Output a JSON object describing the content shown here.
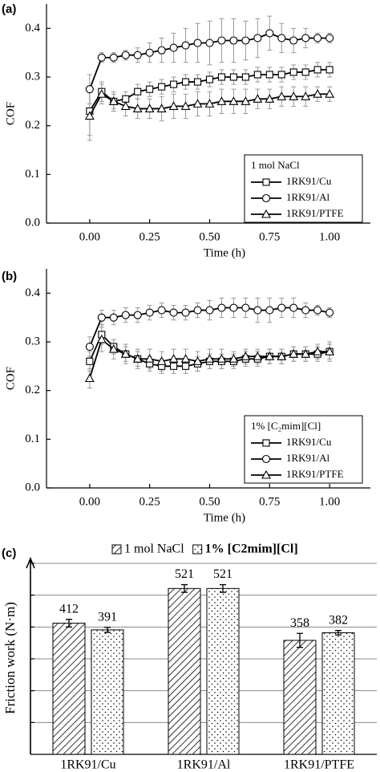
{
  "chart_data": [
    {
      "type": "line",
      "label": "(a)",
      "x_label": "Time (h)",
      "y_label": "COF",
      "legend_title": "1 mol NaCl",
      "x": [
        0,
        0.05,
        0.1,
        0.15,
        0.2,
        0.25,
        0.3,
        0.35,
        0.4,
        0.45,
        0.5,
        0.55,
        0.6,
        0.65,
        0.7,
        0.75,
        0.8,
        0.85,
        0.9,
        0.95,
        1.0
      ],
      "xlim": [
        -0.18,
        1.17
      ],
      "xticks": [
        {
          "value": 0,
          "label": "0.00"
        },
        0.25,
        {
          "value": 0.5,
          "label": "0.50"
        },
        0.75,
        {
          "value": 1,
          "label": "1.00"
        }
      ],
      "ylim": [
        0,
        0.45
      ],
      "yticks": [
        {
          "value": 0,
          "label": "0.0"
        },
        0.1,
        0.2,
        0.3,
        0.4
      ],
      "series": [
        {
          "name": "1RK91/Cu",
          "marker": "square",
          "color": "#000000",
          "values": [
            0.23,
            0.27,
            0.25,
            0.255,
            0.27,
            0.275,
            0.28,
            0.285,
            0.29,
            0.29,
            0.295,
            0.3,
            0.3,
            0.3,
            0.305,
            0.305,
            0.305,
            0.31,
            0.31,
            0.315,
            0.315
          ],
          "errors": [
            0.05,
            0.02,
            0.015,
            0.015,
            0.015,
            0.015,
            0.015,
            0.015,
            0.015,
            0.015,
            0.015,
            0.015,
            0.015,
            0.015,
            0.015,
            0.015,
            0.015,
            0.015,
            0.015,
            0.015,
            0.015
          ]
        },
        {
          "name": "1RK91/Al",
          "marker": "circle",
          "color": "#000000",
          "values": [
            0.275,
            0.34,
            0.34,
            0.345,
            0.345,
            0.35,
            0.355,
            0.36,
            0.365,
            0.37,
            0.37,
            0.375,
            0.375,
            0.375,
            0.38,
            0.39,
            0.38,
            0.375,
            0.38,
            0.38,
            0.38
          ],
          "errors": [
            0.03,
            0.01,
            0.01,
            0.01,
            0.015,
            0.02,
            0.025,
            0.03,
            0.035,
            0.04,
            0.045,
            0.045,
            0.045,
            0.04,
            0.04,
            0.035,
            0.03,
            0.025,
            0.02,
            0.01,
            0.01
          ]
        },
        {
          "name": "1RK91/PTFE",
          "marker": "triangle",
          "color": "#000000",
          "values": [
            0.22,
            0.265,
            0.25,
            0.24,
            0.235,
            0.235,
            0.235,
            0.24,
            0.24,
            0.245,
            0.245,
            0.25,
            0.25,
            0.25,
            0.255,
            0.255,
            0.26,
            0.26,
            0.26,
            0.265,
            0.265
          ],
          "errors": [
            0.05,
            0.02,
            0.02,
            0.02,
            0.02,
            0.02,
            0.025,
            0.025,
            0.025,
            0.025,
            0.025,
            0.025,
            0.025,
            0.025,
            0.02,
            0.02,
            0.02,
            0.02,
            0.02,
            0.015,
            0.015
          ]
        }
      ]
    },
    {
      "type": "line",
      "label": "(b)",
      "x_label": "Time (h)",
      "y_label": "COF",
      "legend_title": "1% [C₂mim][Cl]",
      "x": [
        0,
        0.05,
        0.1,
        0.15,
        0.2,
        0.25,
        0.3,
        0.35,
        0.4,
        0.45,
        0.5,
        0.55,
        0.6,
        0.65,
        0.7,
        0.75,
        0.8,
        0.85,
        0.9,
        0.95,
        1.0
      ],
      "xlim": [
        -0.18,
        1.17
      ],
      "xticks": [
        {
          "value": 0,
          "label": "0.00"
        },
        0.25,
        {
          "value": 0.5,
          "label": "0.50"
        },
        0.75,
        {
          "value": 1,
          "label": "1.00"
        }
      ],
      "ylim": [
        0,
        0.45
      ],
      "yticks": [
        {
          "value": 0,
          "label": "0.0"
        },
        0.1,
        0.2,
        0.3,
        0.4
      ],
      "series": [
        {
          "name": "1RK91/Cu",
          "marker": "square",
          "color": "#000000",
          "values": [
            0.26,
            0.315,
            0.29,
            0.275,
            0.265,
            0.255,
            0.25,
            0.25,
            0.25,
            0.255,
            0.26,
            0.26,
            0.26,
            0.265,
            0.265,
            0.27,
            0.27,
            0.275,
            0.275,
            0.275,
            0.28
          ],
          "errors": [
            0.02,
            0.02,
            0.015,
            0.015,
            0.015,
            0.015,
            0.015,
            0.015,
            0.015,
            0.015,
            0.015,
            0.015,
            0.015,
            0.015,
            0.015,
            0.015,
            0.015,
            0.015,
            0.015,
            0.015,
            0.02
          ]
        },
        {
          "name": "1RK91/Al",
          "marker": "circle",
          "color": "#000000",
          "values": [
            0.29,
            0.35,
            0.35,
            0.355,
            0.355,
            0.36,
            0.365,
            0.36,
            0.36,
            0.365,
            0.365,
            0.37,
            0.37,
            0.37,
            0.365,
            0.365,
            0.37,
            0.37,
            0.365,
            0.365,
            0.36
          ],
          "errors": [
            0.02,
            0.015,
            0.015,
            0.015,
            0.015,
            0.015,
            0.015,
            0.015,
            0.015,
            0.015,
            0.02,
            0.02,
            0.02,
            0.02,
            0.025,
            0.025,
            0.02,
            0.02,
            0.015,
            0.01,
            0.01
          ]
        },
        {
          "name": "1RK91/PTFE",
          "marker": "triangle",
          "color": "#000000",
          "values": [
            0.225,
            0.305,
            0.285,
            0.275,
            0.265,
            0.265,
            0.26,
            0.265,
            0.265,
            0.26,
            0.265,
            0.265,
            0.265,
            0.27,
            0.27,
            0.27,
            0.27,
            0.275,
            0.275,
            0.28,
            0.28
          ],
          "errors": [
            0.02,
            0.025,
            0.02,
            0.02,
            0.02,
            0.02,
            0.02,
            0.02,
            0.02,
            0.02,
            0.02,
            0.02,
            0.015,
            0.015,
            0.015,
            0.015,
            0.015,
            0.015,
            0.015,
            0.015,
            0.015
          ]
        }
      ]
    },
    {
      "type": "bar",
      "label": "(c)",
      "y_label": "Friction work (N·m)",
      "categories": [
        "1RK91/Cu",
        "1RK91/Al",
        "1RK91/PTFE"
      ],
      "ylim": [
        0,
        605
      ],
      "yticks": [
        100,
        200,
        300,
        400,
        500,
        600
      ],
      "grid": true,
      "series": [
        {
          "name": "1 mol NaCl",
          "pattern": "hatch",
          "values": [
            412,
            521,
            358
          ],
          "errors": [
            12,
            12,
            22
          ]
        },
        {
          "name": "1% [C2mim][Cl]",
          "pattern": "dots",
          "values": [
            391,
            521,
            382
          ],
          "errors": [
            8,
            12,
            7
          ]
        }
      ]
    }
  ]
}
